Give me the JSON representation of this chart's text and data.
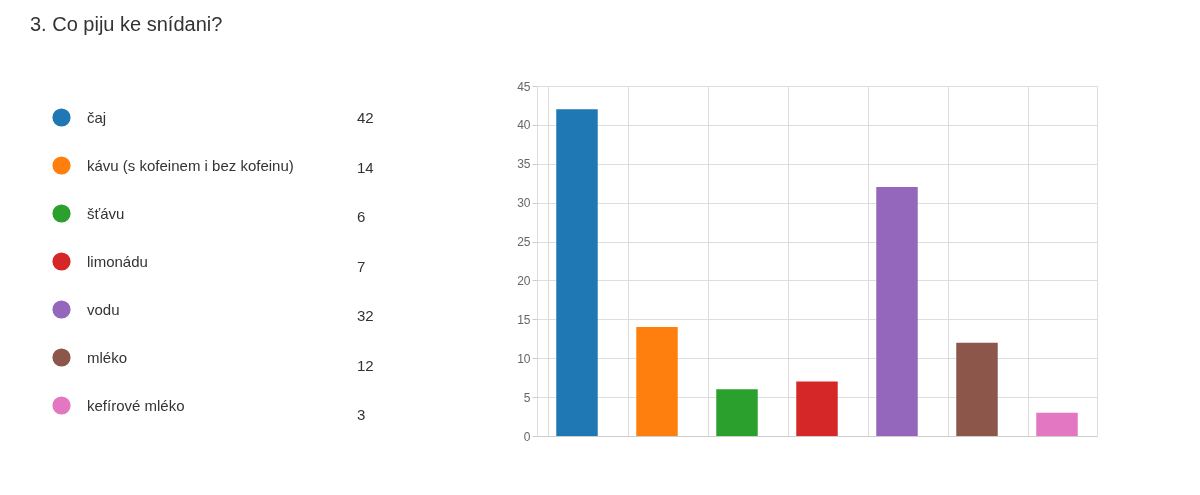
{
  "chart_data": {
    "type": "bar",
    "title": "3.  Co piju ke snídani?",
    "categories": [
      null,
      null,
      null,
      null,
      null,
      null,
      null
    ],
    "series": [
      {
        "name": "čaj",
        "color": "#1f77b4",
        "values": [
          42,
          null,
          null,
          null,
          null,
          null,
          null
        ]
      },
      {
        "name": "kávu (s kofeinem i bez kofeinu)",
        "color": "#ff7f0e",
        "values": [
          null,
          14,
          null,
          null,
          null,
          null,
          null
        ]
      },
      {
        "name": "šťávu",
        "color": "#2ca02c",
        "values": [
          null,
          null,
          6,
          null,
          null,
          null,
          null
        ]
      },
      {
        "name": "limonádu",
        "color": "#d62728",
        "values": [
          null,
          null,
          null,
          7,
          null,
          null,
          null
        ]
      },
      {
        "name": "vodu",
        "color": "#9467bd",
        "values": [
          null,
          null,
          null,
          null,
          32,
          null,
          null
        ]
      },
      {
        "name": "mléko",
        "color": "#8c564b",
        "values": [
          null,
          null,
          null,
          null,
          null,
          12,
          null
        ]
      },
      {
        "name": "kefírové mléko",
        "color": "#e377c2",
        "values": [
          null,
          null,
          null,
          null,
          null,
          null,
          3
        ]
      }
    ],
    "stacked": true,
    "ylim": [
      0,
      45
    ],
    "yticks": [
      0,
      5,
      10,
      15,
      20,
      25,
      30,
      35,
      40,
      45
    ],
    "annotations": [
      "42",
      "14",
      "6",
      "7",
      "32",
      "12",
      "3"
    ],
    "grid": true,
    "legend": "left",
    "tick_labels": "y"
  }
}
